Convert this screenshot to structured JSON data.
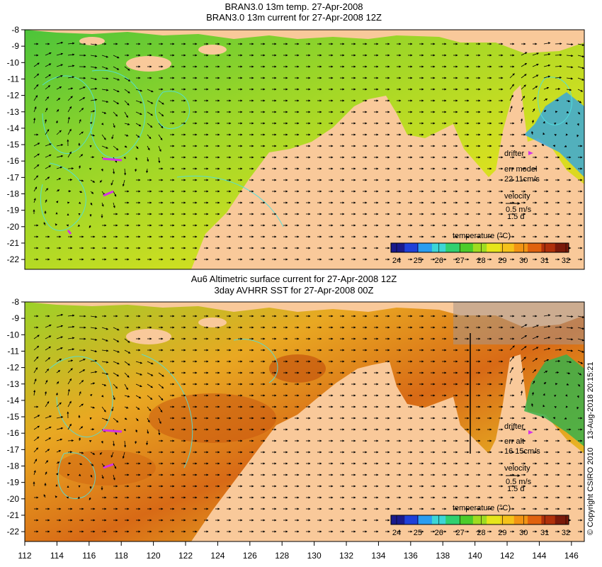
{
  "panels": [
    {
      "id": "top",
      "title_line1": "BRAN3.0 13m temp. 27-Apr-2008",
      "title_line2": "BRAN3.0 13m current for 27-Apr-2008 12Z",
      "drifter": {
        "label": "drifter",
        "err_label": "err model",
        "err_values": "22 11cm/s"
      },
      "velocity": {
        "label": "velocity",
        "scale": "0.5 m/s",
        "duration": "1.5 d"
      }
    },
    {
      "id": "bottom",
      "title_line1": "Au6 Altimetric surface current for 27-Apr-2008 12Z",
      "title_line2": "3day AVHRR SST for 27-Apr-2008 00Z",
      "drifter": {
        "label": "drifter",
        "err_label": "err alt",
        "err_values": "16 15cm/s"
      },
      "velocity": {
        "label": "velocity",
        "scale": "0.5 m/s",
        "duration": "1.5 d"
      }
    }
  ],
  "colorbar": {
    "label": "temperature (°C)",
    "ticks": [
      "24",
      "25",
      "26",
      "27",
      "28",
      "29",
      "30",
      "31",
      "32"
    ],
    "colors": [
      "#1a1a8c",
      "#1f40d9",
      "#2a9df0",
      "#3cd6d6",
      "#30d070",
      "#4ccc2a",
      "#9fdc20",
      "#e6e61a",
      "#f5c21a",
      "#f29414",
      "#e0620e",
      "#b0300a",
      "#7a1a0a"
    ]
  },
  "axes": {
    "y_ticks": [
      "-8",
      "-9",
      "-10",
      "-11",
      "-12",
      "-13",
      "-14",
      "-15",
      "-16",
      "-17",
      "-18",
      "-19",
      "-20",
      "-21",
      "-22"
    ],
    "x_ticks": [
      "112",
      "114",
      "116",
      "118",
      "120",
      "122",
      "124",
      "126",
      "128",
      "130",
      "132",
      "134",
      "136",
      "138",
      "140",
      "142",
      "144",
      "146"
    ]
  },
  "copyright": "© Copyright CSIRO 2010",
  "timestamp": "13-Aug-2018 20:15:21"
}
